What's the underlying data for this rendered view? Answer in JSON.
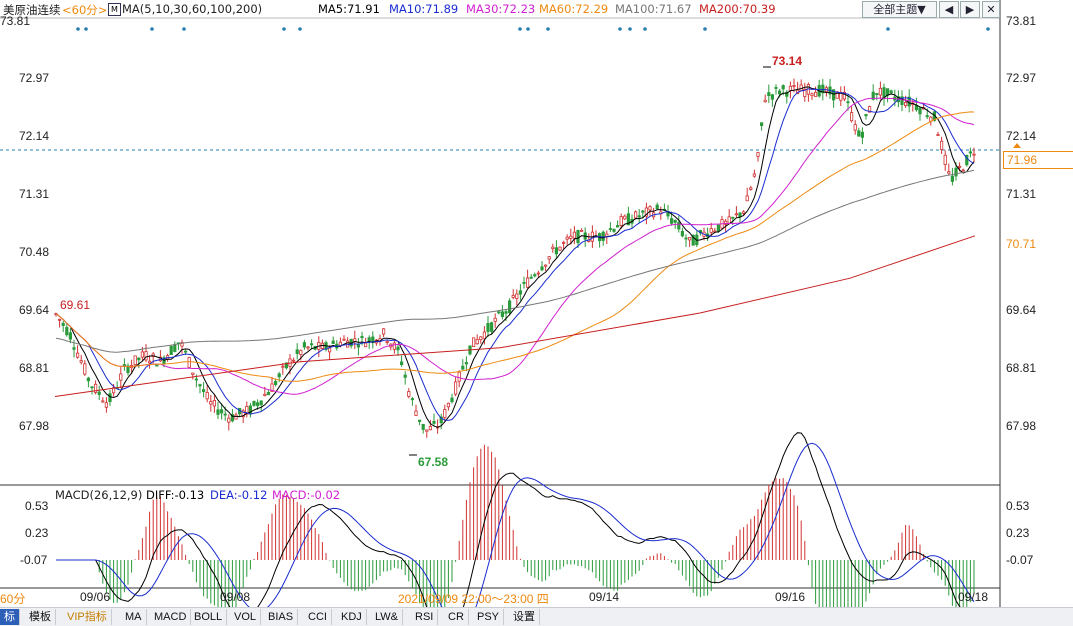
{
  "header": {
    "symbol": "美原油连续",
    "period": "<60分>",
    "ma_params": "MA(5,10,30,60,100,200)",
    "ma5": "MA5:71.91",
    "ma10": "MA10:71.89",
    "ma30": "MA30:72.23",
    "ma60": "MA60:72.29",
    "ma100": "MA100:71.67",
    "ma200": "MA200:70.39",
    "theme_dropdown": "全部主题▼",
    "btn_left": "◀",
    "btn_right": "▶"
  },
  "colors": {
    "ma5": "#000000",
    "ma10": "#1a2cd0",
    "ma30": "#d020d0",
    "ma60": "#ee8a10",
    "ma100": "#777777",
    "ma200": "#c81e1e",
    "up": "#d23232",
    "down": "#2a9a3a"
  },
  "price_axis": {
    "ticks": [
      "73.81",
      "72.97",
      "72.14",
      "71.31",
      "70.48",
      "69.64",
      "68.81",
      "67.98"
    ],
    "current_price": "71.96",
    "ma200_price": "70.71"
  },
  "annotations": {
    "high": "73.14",
    "low": "67.58",
    "start": "69.61"
  },
  "macd": {
    "title": "MACD(26,12,9)",
    "diff": "DIFF:-0.13",
    "dea": "DEA:-0.12",
    "macd": "MACD:-0.02",
    "ticks": [
      "0.53",
      "0.23",
      "-0.07"
    ]
  },
  "time_axis": {
    "labels": [
      "09/06",
      "09/08",
      "09/14",
      "09/16",
      "09/18"
    ],
    "cursor": "2021/09/09 22:00～23:00 四",
    "left_partial": "60分"
  },
  "tabs": [
    "标",
    "模板",
    "VIP指标",
    "MA",
    "MACD",
    "BOLL",
    "VOL",
    "BIAS",
    "CCI",
    "KDJ",
    "LW&",
    "RSI",
    "CR",
    "PSY",
    "设置"
  ]
}
